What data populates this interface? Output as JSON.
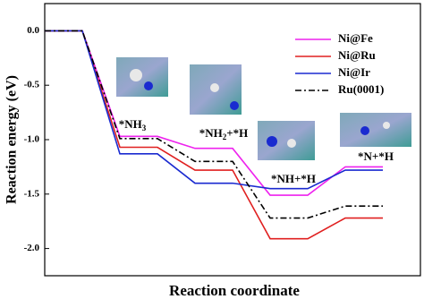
{
  "chart_data": {
    "type": "line",
    "ylabel": "Reaction energy (eV)",
    "xlabel": "Reaction coordinate",
    "x": [
      0,
      1,
      2,
      3,
      4,
      5,
      6,
      7,
      8,
      9
    ],
    "xlim": [
      0,
      10
    ],
    "ylim": [
      -2.25,
      0.25
    ],
    "yticks": [
      {
        "value": 0,
        "label": "0.0"
      },
      -0.5,
      {
        "value": -1,
        "label": "-1.0"
      },
      -1.5,
      {
        "value": -2,
        "label": "-2.0"
      }
    ],
    "legend": "upper right",
    "series": [
      {
        "name": "Ni@Fe",
        "color": "#ee22ee",
        "style": "solid",
        "values": [
          0,
          0,
          -0.97,
          -0.97,
          -1.08,
          -1.08,
          -1.51,
          -1.51,
          -1.25,
          -1.25
        ]
      },
      {
        "name": "Ni@Ru",
        "color": "#e02020",
        "style": "solid",
        "values": [
          0,
          0,
          -1.07,
          -1.07,
          -1.28,
          -1.28,
          -1.91,
          -1.91,
          -1.72,
          -1.72
        ]
      },
      {
        "name": "Ni@Ir",
        "color": "#1a2ad0",
        "style": "solid",
        "values": [
          0,
          0,
          -1.13,
          -1.13,
          -1.4,
          -1.4,
          -1.45,
          -1.45,
          -1.28,
          -1.28
        ]
      },
      {
        "name": "Ru(0001)",
        "color": "#000000",
        "style": "dashdot",
        "values": [
          0,
          0,
          -0.99,
          -0.99,
          -1.2,
          -1.2,
          -1.72,
          -1.72,
          -1.61,
          -1.61
        ]
      }
    ],
    "annotations": [
      {
        "text": "*NH",
        "sub": "3"
      },
      {
        "text": "*NH",
        "sub": "2",
        "tail": "+*H"
      },
      {
        "text": "*NH+*H"
      },
      {
        "text": "*N+*H"
      }
    ]
  }
}
